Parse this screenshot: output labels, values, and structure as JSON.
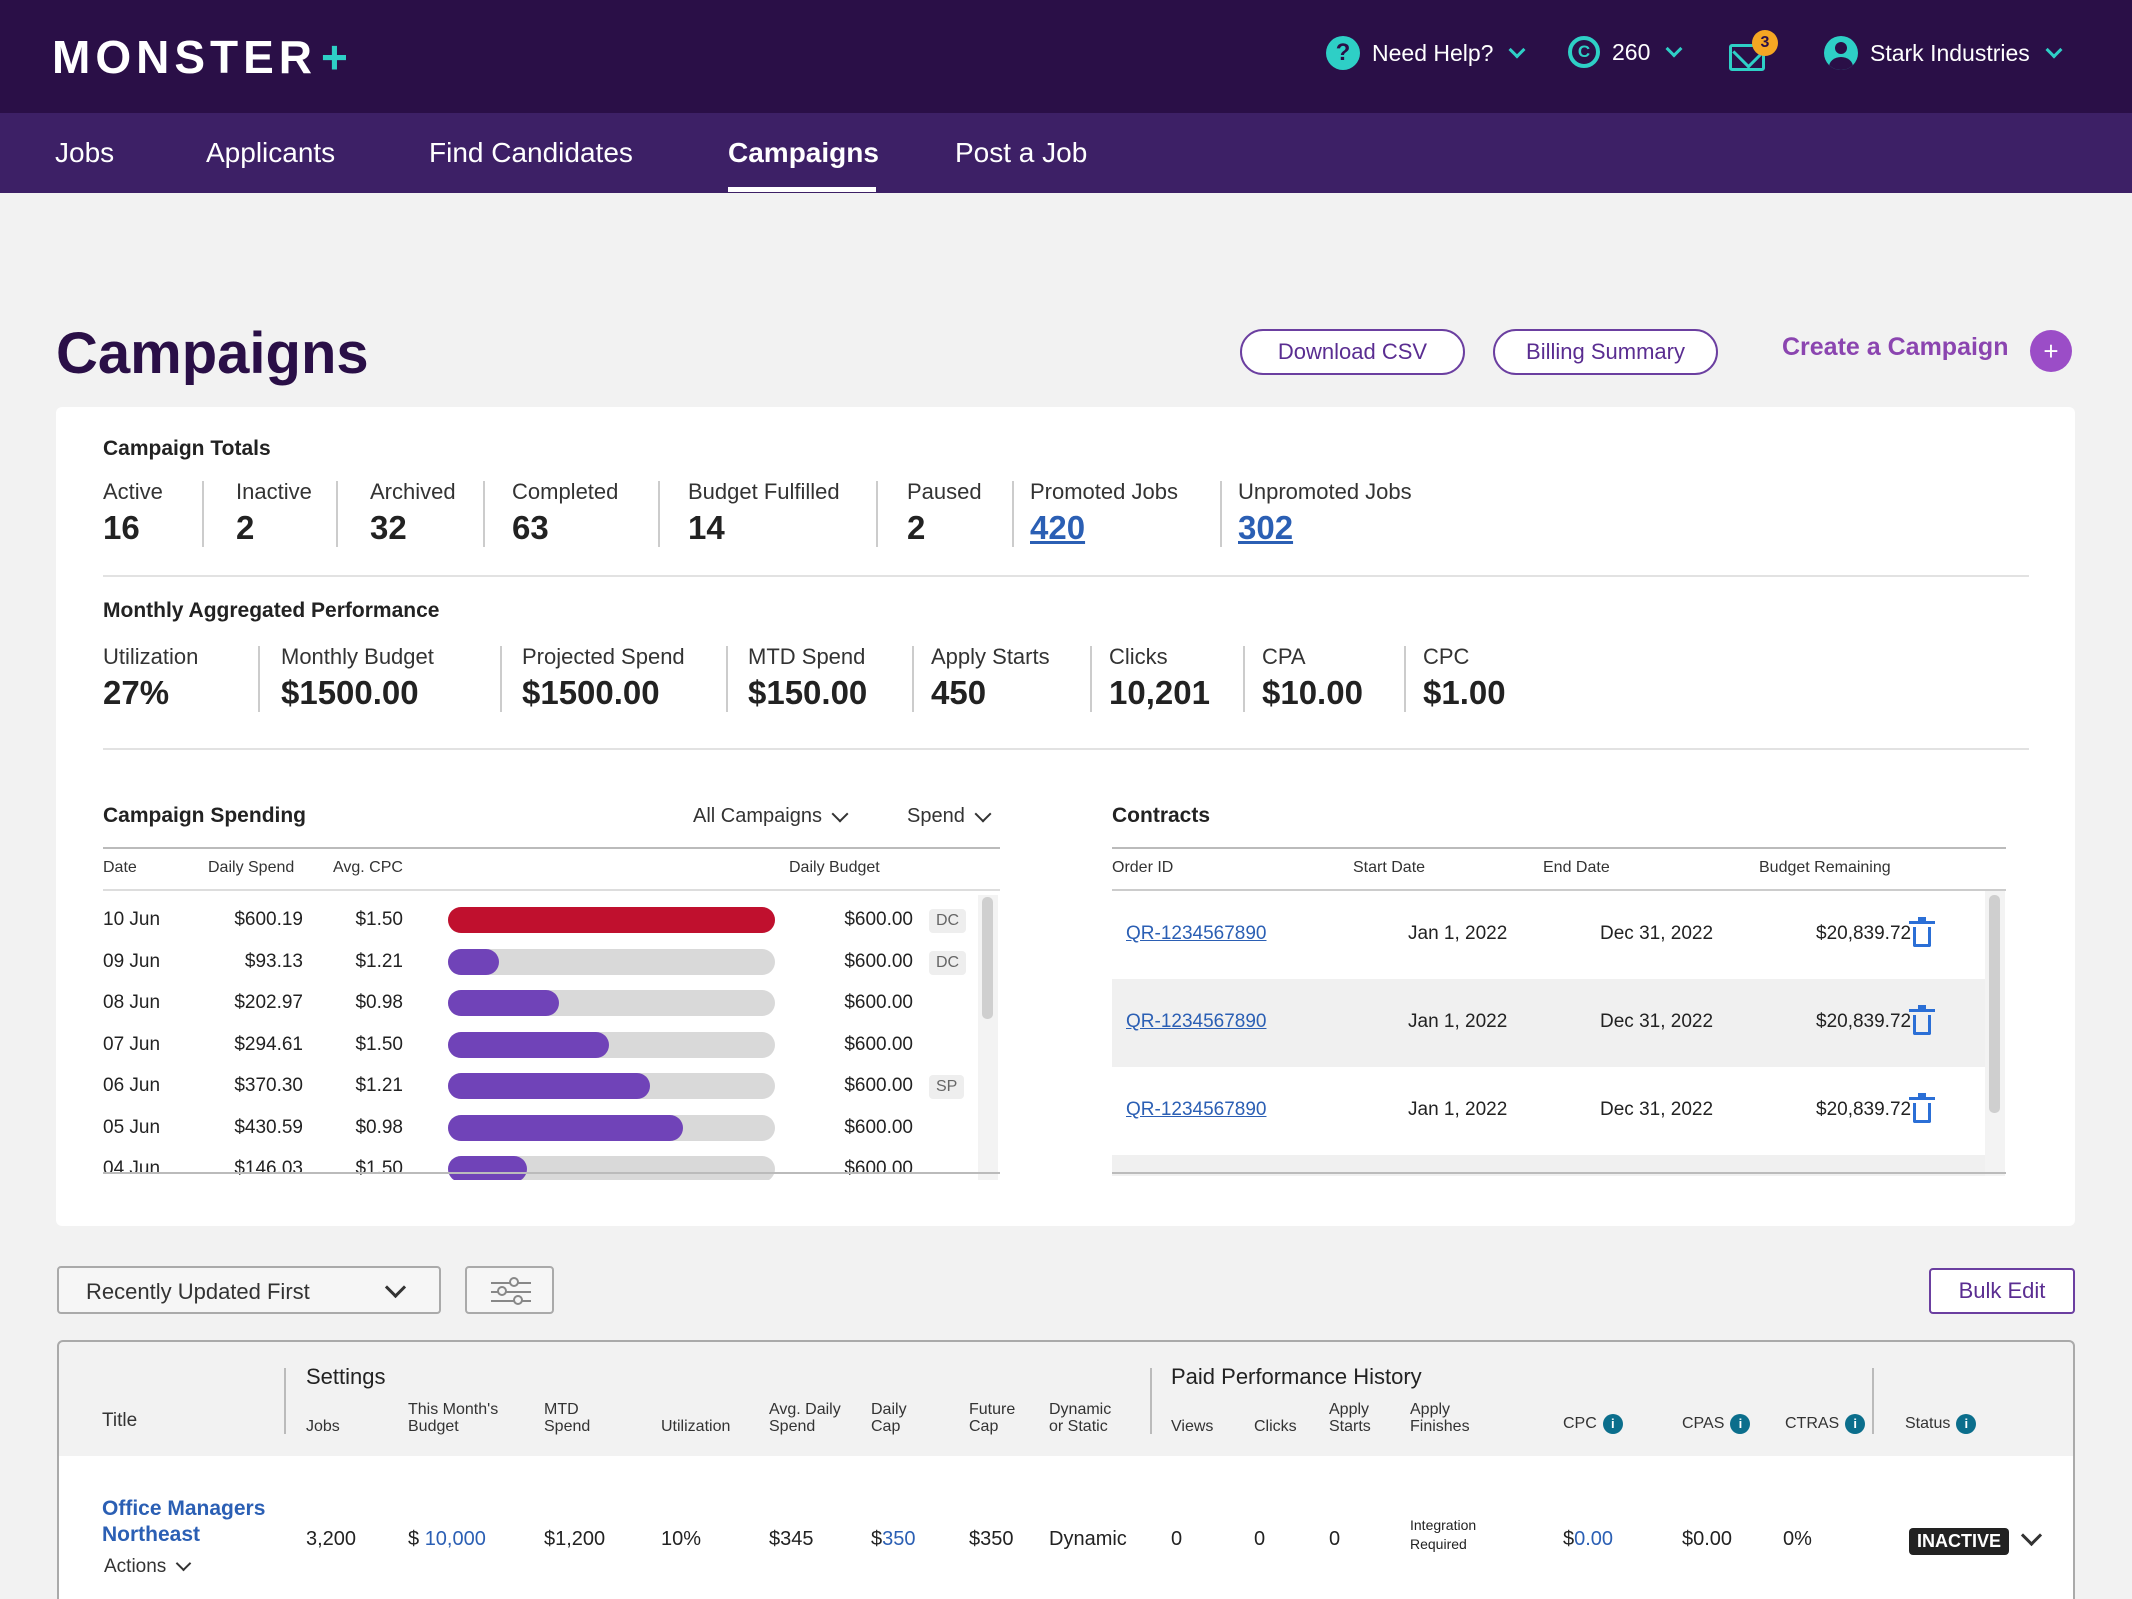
{
  "header": {
    "logo_text": "MONSTER",
    "logo_plus": "+",
    "help_label": "Need Help?",
    "help_icon": "question-icon",
    "credits": "260",
    "credits_icon": "copyright-icon",
    "mail_badge": "3",
    "account": "Stark Industries"
  },
  "nav": {
    "items": [
      "Jobs",
      "Applicants",
      "Find Candidates",
      "Campaigns",
      "Post a Job"
    ],
    "active": "Campaigns"
  },
  "page": {
    "title": "Campaigns",
    "download_csv": "Download CSV",
    "billing_summary": "Billing Summary",
    "create_campaign": "Create a Campaign",
    "create_icon": "+"
  },
  "totals": {
    "title": "Campaign Totals",
    "items": [
      {
        "label": "Active",
        "value": "16"
      },
      {
        "label": "Inactive",
        "value": "2"
      },
      {
        "label": "Archived",
        "value": "32"
      },
      {
        "label": "Completed",
        "value": "63"
      },
      {
        "label": "Budget Fulfilled",
        "value": "14"
      },
      {
        "label": "Paused",
        "value": "2"
      },
      {
        "label": "Promoted Jobs",
        "value": "420"
      },
      {
        "label": "Unpromoted Jobs",
        "value": "302"
      }
    ]
  },
  "performance": {
    "title": "Monthly Aggregated Performance",
    "items": [
      {
        "label": "Utilization",
        "value": "27%"
      },
      {
        "label": "Monthly Budget",
        "value": "$1500.00"
      },
      {
        "label": "Projected Spend",
        "value": "$1500.00"
      },
      {
        "label": "MTD Spend",
        "value": "$150.00"
      },
      {
        "label": "Apply Starts",
        "value": "450"
      },
      {
        "label": "Clicks",
        "value": "10,201"
      },
      {
        "label": "CPA",
        "value": "$10.00"
      },
      {
        "label": "CPC",
        "value": "$1.00"
      }
    ]
  },
  "spending": {
    "title": "Campaign Spending",
    "filter_campaigns": "All Campaigns",
    "filter_metric": "Spend",
    "headers": {
      "date": "Date",
      "daily_spend": "Daily Spend",
      "avg_cpc": "Avg. CPC",
      "daily_budget": "Daily Budget"
    },
    "rows": [
      {
        "date": "10 Jun",
        "spend": "$600.19",
        "cpc": "$1.50",
        "budget": "$600.00",
        "tag": "DC",
        "fill": 1.0,
        "color": "#c0102e"
      },
      {
        "date": "09 Jun",
        "spend": "$93.13",
        "cpc": "$1.21",
        "budget": "$600.00",
        "tag": "DC",
        "fill": 0.155,
        "color": "#7043b8"
      },
      {
        "date": "08 Jun",
        "spend": "$202.97",
        "cpc": "$0.98",
        "budget": "$600.00",
        "tag": "",
        "fill": 0.338,
        "color": "#7043b8"
      },
      {
        "date": "07 Jun",
        "spend": "$294.61",
        "cpc": "$1.50",
        "budget": "$600.00",
        "tag": "",
        "fill": 0.491,
        "color": "#7043b8"
      },
      {
        "date": "06 Jun",
        "spend": "$370.30",
        "cpc": "$1.21",
        "budget": "$600.00",
        "tag": "SP",
        "fill": 0.617,
        "color": "#7043b8"
      },
      {
        "date": "05 Jun",
        "spend": "$430.59",
        "cpc": "$0.98",
        "budget": "$600.00",
        "tag": "",
        "fill": 0.718,
        "color": "#7043b8"
      },
      {
        "date": "04 Jun",
        "spend": "$146.03",
        "cpc": "$1.50",
        "budget": "$600.00",
        "tag": "",
        "fill": 0.243,
        "color": "#7043b8"
      }
    ]
  },
  "contracts": {
    "title": "Contracts",
    "headers": {
      "order_id": "Order ID",
      "start": "Start Date",
      "end": "End Date",
      "budget": "Budget Remaining"
    },
    "rows": [
      {
        "order_id": "QR-1234567890",
        "start": "Jan 1, 2022",
        "end": "Dec 31, 2022",
        "budget": "$20,839.72"
      },
      {
        "order_id": "QR-1234567890",
        "start": "Jan 1, 2022",
        "end": "Dec 31, 2022",
        "budget": "$20,839.72"
      },
      {
        "order_id": "QR-1234567890",
        "start": "Jan 1, 2022",
        "end": "Dec 31, 2022",
        "budget": "$20,839.72"
      }
    ]
  },
  "list_controls": {
    "sort": "Recently Updated First",
    "bulk_edit": "Bulk Edit"
  },
  "table": {
    "group_settings": "Settings",
    "group_paid": "Paid Performance History",
    "col_title": "Title",
    "col_jobs": "Jobs",
    "col_budget": [
      "This Month's",
      "Budget"
    ],
    "col_mtd": [
      "MTD",
      "Spend"
    ],
    "col_util": "Utilization",
    "col_avg_daily": [
      "Avg. Daily",
      "Spend"
    ],
    "col_daily_cap": [
      "Daily",
      "Cap"
    ],
    "col_future_cap": [
      "Future",
      "Cap"
    ],
    "col_dynamic": [
      "Dynamic",
      "or Static"
    ],
    "col_views": "Views",
    "col_clicks": "Clicks",
    "col_apply_starts": [
      "Apply",
      "Starts"
    ],
    "col_apply_finishes": [
      "Apply",
      "Finishes"
    ],
    "col_cpc": "CPC",
    "col_cpas": "CPAS",
    "col_ctras": "CTRAS",
    "col_status": "Status",
    "info_icon": "i",
    "rows": [
      {
        "title": "Office Managers Northeast",
        "actions": "Actions",
        "jobs": "3,200",
        "budget_prefix": "$",
        "budget": "10,000",
        "mtd": "$1,200",
        "util": "10%",
        "avg_daily": "$345",
        "daily_cap_prefix": "$",
        "daily_cap": "350",
        "future_cap": "$350",
        "dynamic": "Dynamic",
        "views": "0",
        "clicks": "0",
        "apply_starts": "0",
        "apply_finishes": [
          "Integration",
          "Required"
        ],
        "cpc_prefix": "$",
        "cpc": "0.00",
        "cpas": "$0.00",
        "ctras": "0%",
        "status": "INACTIVE"
      }
    ]
  }
}
